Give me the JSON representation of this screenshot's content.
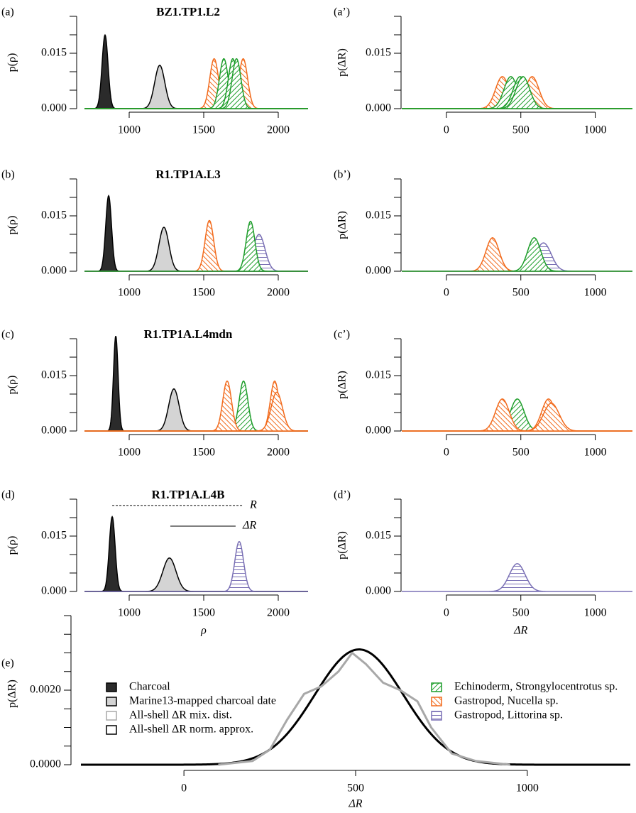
{
  "chart_data": [
    {
      "type": "density",
      "panel_label": "(a)",
      "title": "BZ1.TP1.L2",
      "ylabel": "p(ρ)",
      "xlim": [
        700,
        2200
      ],
      "xticks": [
        1000,
        1500,
        2000
      ],
      "ylim": [
        0,
        0.025
      ],
      "yticks": [
        {
          "value": 0,
          "label": "0.000"
        },
        {
          "value": 0.015,
          "label": "0.015"
        }
      ],
      "yticks_minor": [
        0.005,
        0.01,
        0.02,
        0.025
      ],
      "series": [
        {
          "mean": 838,
          "sd": 20,
          "color": "#000000",
          "fill": "#2b2b2b"
        },
        {
          "mean": 1205,
          "sd": 34,
          "color": "#000000",
          "fill": "#d4d4d4"
        },
        {
          "mean": 1570,
          "sd": 29.5,
          "color": "#f26b1d",
          "hatch": "down"
        },
        {
          "mean": 1765,
          "sd": 29.5,
          "color": "#f26b1d",
          "hatch": "down"
        },
        {
          "mean": 1635,
          "sd": 29.5,
          "color": "#1f9e2c",
          "hatch": "up"
        },
        {
          "mean": 1695,
          "sd": 29.5,
          "color": "#1f9e2c",
          "hatch": "up"
        },
        {
          "mean": 1720,
          "sd": 29.5,
          "color": "#1f9e2c",
          "hatch": "up"
        }
      ]
    },
    {
      "type": "density",
      "panel_label": "(a’)",
      "ylabel": "p(ΔR)",
      "xlim": [
        -300,
        1250
      ],
      "xticks": [
        0,
        500,
        1000
      ],
      "ylim": [
        0,
        0.025
      ],
      "yticks": [
        {
          "value": 0,
          "label": "0.000"
        },
        {
          "value": 0.015,
          "label": "0.015"
        }
      ],
      "yticks_minor": [
        0.005,
        0.01,
        0.02,
        0.025
      ],
      "series": [
        {
          "mean": 376,
          "sd": 46,
          "color": "#f26b1d",
          "hatch": "down"
        },
        {
          "mean": 576,
          "sd": 46,
          "color": "#f26b1d",
          "hatch": "down"
        },
        {
          "mean": 433,
          "sd": 46,
          "color": "#1f9e2c",
          "hatch": "up"
        },
        {
          "mean": 495,
          "sd": 46,
          "color": "#1f9e2c",
          "hatch": "up"
        },
        {
          "mean": 514,
          "sd": 46,
          "color": "#1f9e2c",
          "hatch": "up"
        }
      ]
    },
    {
      "type": "density",
      "panel_label": "(b)",
      "title": "R1.TP1A.L3",
      "ylabel": "p(ρ)",
      "xlim": [
        700,
        2200
      ],
      "xticks": [
        1000,
        1500,
        2000
      ],
      "ylim": [
        0,
        0.025
      ],
      "yticks": [
        {
          "value": 0,
          "label": "0.000"
        },
        {
          "value": 0.015,
          "label": "0.015"
        }
      ],
      "yticks_minor": [
        0.005,
        0.01,
        0.02,
        0.025
      ],
      "series": [
        {
          "mean": 862,
          "sd": 19.5,
          "color": "#000000",
          "fill": "#2b2b2b"
        },
        {
          "mean": 1233,
          "sd": 33.5,
          "color": "#000000",
          "fill": "#d4d4d4"
        },
        {
          "mean": 1538,
          "sd": 29,
          "color": "#f26b1d",
          "hatch": "down"
        },
        {
          "mean": 1871,
          "sd": 40,
          "color": "#7a70b5",
          "hatch": "horizontal"
        },
        {
          "mean": 1814,
          "sd": 29.5,
          "color": "#1f9e2c",
          "hatch": "up"
        }
      ]
    },
    {
      "type": "density",
      "panel_label": "(b’)",
      "ylabel": "p(ΔR)",
      "xlim": [
        -300,
        1250
      ],
      "xticks": [
        0,
        500,
        1000
      ],
      "ylim": [
        0,
        0.025
      ],
      "yticks": [
        {
          "value": 0,
          "label": "0.000"
        },
        {
          "value": 0.015,
          "label": "0.015"
        }
      ],
      "yticks_minor": [
        0.005,
        0.01,
        0.02,
        0.025
      ],
      "series": [
        {
          "mean": 310,
          "sd": 44,
          "color": "#f26b1d",
          "hatch": "down"
        },
        {
          "mean": 652,
          "sd": 52,
          "color": "#7a70b5",
          "hatch": "horizontal"
        },
        {
          "mean": 590,
          "sd": 44,
          "color": "#1f9e2c",
          "hatch": "up"
        }
      ]
    },
    {
      "type": "density",
      "panel_label": "(c)",
      "title": "R1.TP1A.L4mdn",
      "ylabel": "p(ρ)",
      "xlim": [
        700,
        2200
      ],
      "xticks": [
        1000,
        1500,
        2000
      ],
      "ylim": [
        0,
        0.025
      ],
      "yticks": [
        {
          "value": 0,
          "label": "0.000"
        },
        {
          "value": 0.015,
          "label": "0.015"
        }
      ],
      "yticks_minor": [
        0.005,
        0.01,
        0.02,
        0.025
      ],
      "series": [
        {
          "mean": 910,
          "sd": 15.5,
          "color": "#000000",
          "fill": "#2b2b2b"
        },
        {
          "mean": 1300,
          "sd": 35,
          "color": "#000000",
          "fill": "#d4d4d4"
        },
        {
          "mean": 1767,
          "sd": 29.5,
          "color": "#1f9e2c",
          "hatch": "up"
        },
        {
          "mean": 1657,
          "sd": 29.5,
          "color": "#f26b1d",
          "hatch": "down"
        },
        {
          "mean": 1976,
          "sd": 29.5,
          "color": "#f26b1d",
          "hatch": "down"
        },
        {
          "mean": 1990,
          "sd": 38,
          "color": "#f26b1d",
          "hatch": "down"
        }
      ]
    },
    {
      "type": "density",
      "panel_label": "(c’)",
      "ylabel": "p(ΔR)",
      "xlim": [
        -300,
        1250
      ],
      "xticks": [
        0,
        500,
        1000
      ],
      "ylim": [
        0,
        0.025
      ],
      "yticks": [
        {
          "value": 0,
          "label": "0.000"
        },
        {
          "value": 0.015,
          "label": "0.015"
        }
      ],
      "yticks_minor": [
        0.005,
        0.01,
        0.02,
        0.025
      ],
      "series": [
        {
          "mean": 476,
          "sd": 46,
          "color": "#1f9e2c",
          "hatch": "up"
        },
        {
          "mean": 376,
          "sd": 46,
          "color": "#f26b1d",
          "hatch": "down"
        },
        {
          "mean": 686,
          "sd": 46,
          "color": "#f26b1d",
          "hatch": "down"
        },
        {
          "mean": 705,
          "sd": 53,
          "color": "#f26b1d",
          "hatch": "down"
        }
      ]
    },
    {
      "type": "density",
      "panel_label": "(d)",
      "title": "R1.TP1A.L4B",
      "ylabel": "p(ρ)",
      "xlabel": "ρ",
      "xlim": [
        700,
        2200
      ],
      "xticks": [
        1000,
        1500,
        2000
      ],
      "ylim": [
        0,
        0.025
      ],
      "yticks": [
        {
          "value": 0,
          "label": "0.000"
        },
        {
          "value": 0.015,
          "label": "0.015"
        }
      ],
      "yticks_minor": [
        0.005,
        0.01,
        0.02,
        0.025
      ],
      "series": [
        {
          "mean": 886,
          "sd": 19.7,
          "color": "#000000",
          "fill": "#2b2b2b"
        },
        {
          "mean": 1270,
          "sd": 44,
          "color": "#000000",
          "fill": "#d4d4d4"
        },
        {
          "mean": 1738,
          "sd": 29.5,
          "color": "#7a70b5",
          "hatch": "horizontal"
        }
      ],
      "annotations": [
        {
          "text": "R",
          "x": [
            886,
            1762
          ],
          "y": 0.0233,
          "dash": true
        },
        {
          "text": "ΔR",
          "x": [
            1276,
            1714
          ],
          "y": 0.0177
        }
      ]
    },
    {
      "type": "density",
      "panel_label": "(d’)",
      "ylabel": "p(ΔR)",
      "xlabel": "ΔR",
      "xlim": [
        -300,
        1250
      ],
      "xticks": [
        0,
        500,
        1000
      ],
      "ylim": [
        0,
        0.025
      ],
      "yticks": [
        {
          "value": 0,
          "label": "0.000"
        },
        {
          "value": 0.015,
          "label": "0.015"
        }
      ],
      "yticks_minor": [
        0.005,
        0.01,
        0.02,
        0.025
      ],
      "series": [
        {
          "mean": 476,
          "sd": 53,
          "color": "#7a70b5",
          "hatch": "horizontal"
        }
      ]
    },
    {
      "type": "density",
      "panel_label": "(e)",
      "ylabel": "p(ΔR)",
      "xlabel": "ΔR",
      "xlim": [
        -300,
        1300
      ],
      "xticks": [
        0,
        500,
        1000
      ],
      "ylim": [
        0,
        0.0042
      ],
      "yticks": [
        {
          "value": 0,
          "label": "0.0000"
        },
        {
          "value": 0.002,
          "label": "0.0020"
        }
      ],
      "yticks_minor": [
        0.0005,
        0.001,
        0.0015,
        0.0025,
        0.003,
        0.0035,
        0.004
      ],
      "series": [
        {
          "mean": 510,
          "sd": 129,
          "color": "#000000",
          "width": 3
        },
        {
          "x": [
            100,
            200,
            250,
            300,
            350,
            400,
            450,
            490,
            530,
            580,
            630,
            680,
            720,
            780,
            850,
            950
          ],
          "values": [
            0,
            0.0001,
            0.0004,
            0.0012,
            0.0019,
            0.0021,
            0.0025,
            0.003,
            0.0027,
            0.0022,
            0.002,
            0.0017,
            0.001,
            0.0003,
            0.0001,
            0
          ],
          "color": "#a8a8a8",
          "width": 3
        }
      ],
      "legend": [
        {
          "name": "Charcoal",
          "color": "#000000",
          "fill": "#2b2b2b"
        },
        {
          "name": "Marine13-mapped charcoal date",
          "color": "#000000",
          "fill": "#d4d4d4"
        },
        {
          "name": "All-shell ΔR mix. dist.",
          "color": "#a8a8a8",
          "fill": "#ffffff"
        },
        {
          "name": "All-shell ΔR norm. approx.",
          "color": "#000000",
          "fill": "#ffffff"
        },
        {
          "name": "Echinoderm, Strongylocentrotus sp.",
          "color": "#1f9e2c",
          "hatch": "up"
        },
        {
          "name": "Gastropod, Nucella sp.",
          "color": "#f26b1d",
          "hatch": "down"
        },
        {
          "name": "Gastropod, Littorina sp.",
          "color": "#7a70b5",
          "hatch": "horizontal"
        }
      ]
    }
  ]
}
